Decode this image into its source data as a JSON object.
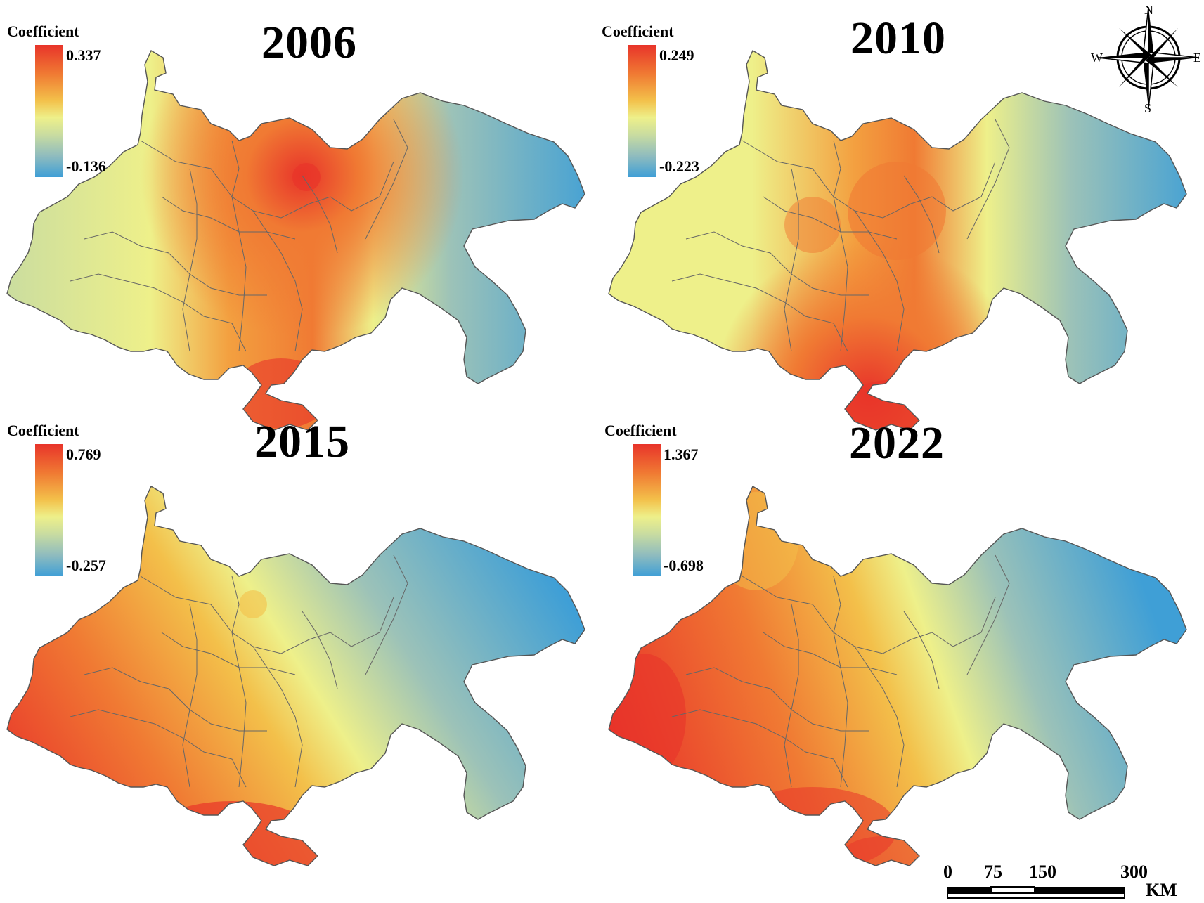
{
  "panels": [
    {
      "year": "2006",
      "legend": {
        "title": "Coefficient",
        "max": "0.337",
        "min": "-0.136"
      },
      "hotspot": "center-north",
      "colors": {
        "high": "#e8342a",
        "mid": "#eef08a",
        "low": "#3f9fd6"
      }
    },
    {
      "year": "2010",
      "legend": {
        "title": "Coefficient",
        "max": "0.249",
        "min": "-0.223"
      },
      "hotspot": "center-south",
      "colors": {
        "high": "#e8342a",
        "mid": "#eef08a",
        "low": "#3f9fd6"
      }
    },
    {
      "year": "2015",
      "legend": {
        "title": "Coefficient",
        "max": "0.769",
        "min": "-0.257"
      },
      "hotspot": "south-west",
      "colors": {
        "high": "#e8342a",
        "mid": "#eef08a",
        "low": "#3f9fd6"
      }
    },
    {
      "year": "2022",
      "legend": {
        "title": "Coefficient",
        "max": "1.367",
        "min": "-0.698"
      },
      "hotspot": "west-south",
      "colors": {
        "high": "#e8342a",
        "mid": "#eef08a",
        "low": "#3f9fd6"
      }
    }
  ],
  "compass": {
    "n": "N",
    "s": "S",
    "e": "E",
    "w": "W",
    "icon": "compass-rose-icon"
  },
  "scale": {
    "ticks": [
      "0",
      "75",
      "150",
      "300"
    ],
    "unit": "KM"
  }
}
